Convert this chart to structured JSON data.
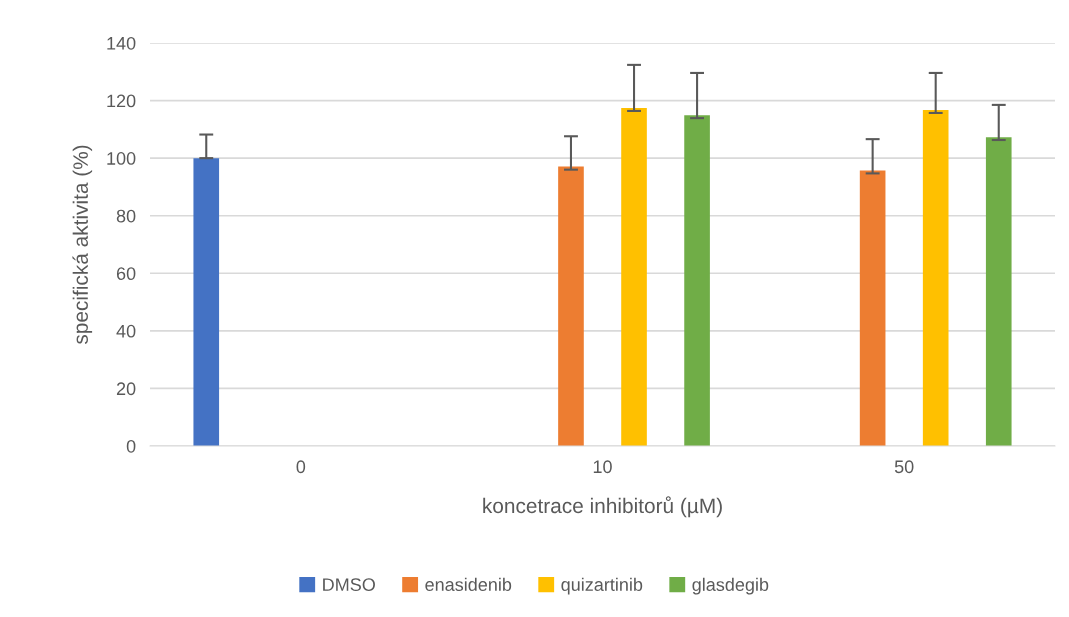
{
  "chart_data": {
    "type": "bar",
    "xlabel": "koncetrace inhibitorů (µM)",
    "ylabel": "specifická aktivita (%)",
    "categories": [
      "0",
      "10",
      "50"
    ],
    "series": [
      {
        "name": "DMSO",
        "color": "#4472c4",
        "values": [
          100,
          null,
          null
        ],
        "errors": [
          [
            100,
            108.2
          ],
          null,
          null
        ]
      },
      {
        "name": "enasidenib",
        "color": "#ed7d31",
        "values": [
          null,
          97.1,
          95.7
        ],
        "errors": [
          null,
          [
            96.0,
            107.6
          ],
          [
            94.7,
            106.6
          ]
        ]
      },
      {
        "name": "quizartinib",
        "color": "#ffc000",
        "values": [
          null,
          117.4,
          116.7
        ],
        "errors": [
          null,
          [
            116.4,
            132.4
          ],
          [
            115.7,
            129.6
          ]
        ]
      },
      {
        "name": "glasdegib",
        "color": "#70ad47",
        "values": [
          null,
          114.9,
          107.3
        ],
        "errors": [
          null,
          [
            113.9,
            129.6
          ],
          [
            106.3,
            118.5
          ]
        ]
      }
    ],
    "ylim": [
      0,
      140
    ],
    "yticks": [
      0,
      20,
      40,
      60,
      80,
      100,
      120,
      140
    ],
    "grid": "y",
    "legend": "bottom"
  }
}
